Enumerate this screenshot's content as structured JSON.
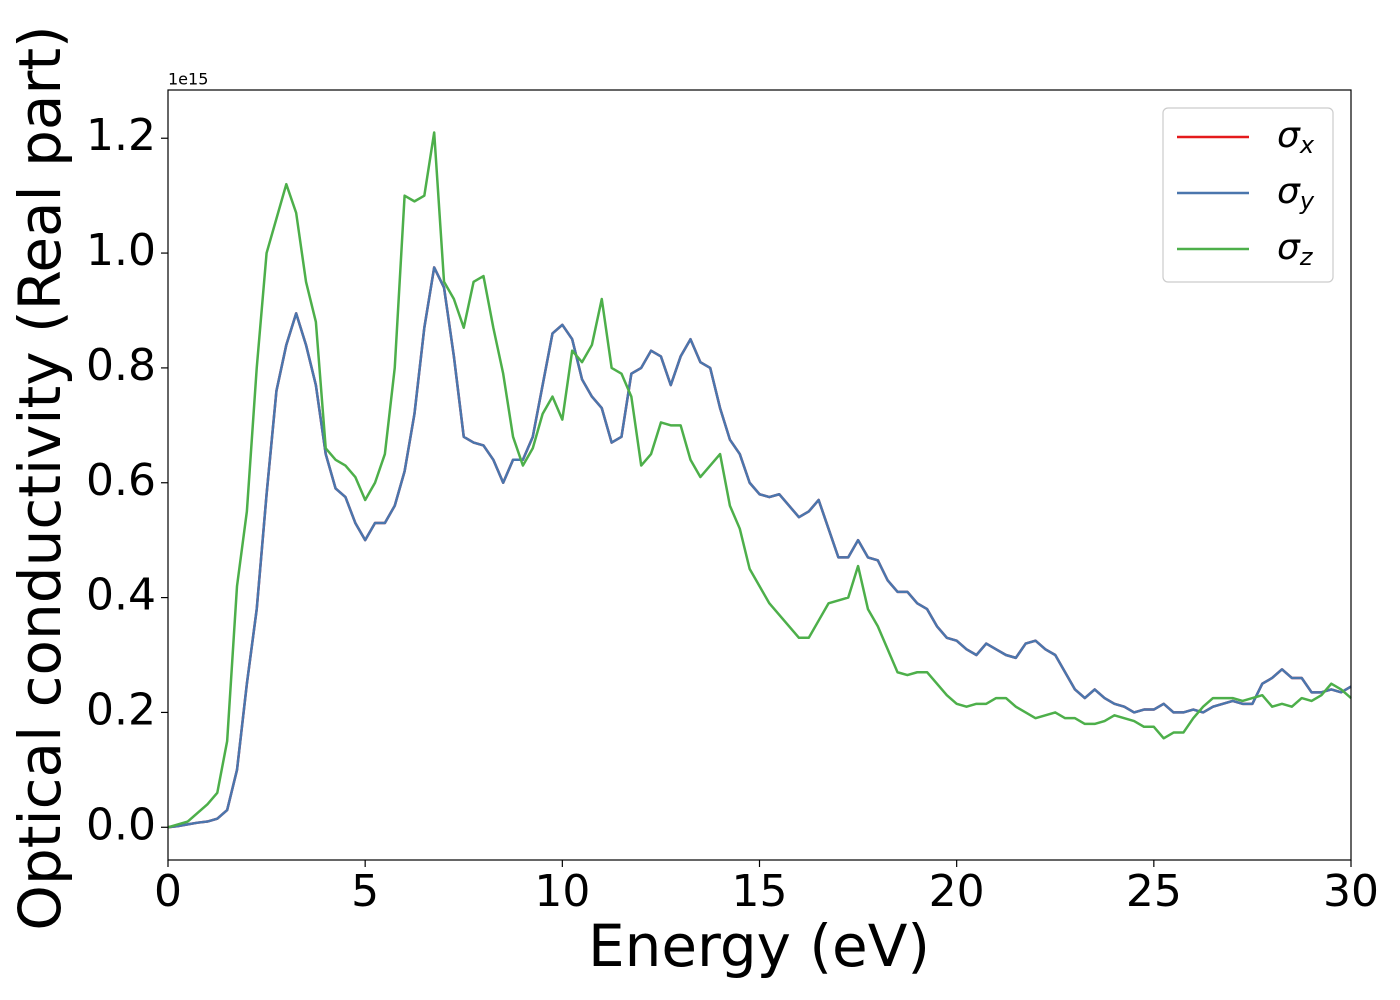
{
  "chart_data": {
    "type": "line",
    "xlabel": "Energy (eV)",
    "ylabel": "Optical conductivity (Real part)",
    "y_offset_text": "1e15",
    "xlim": [
      0,
      30
    ],
    "xticks": [
      0,
      5,
      10,
      15,
      20,
      25,
      30
    ],
    "ylim": [
      -0.057,
      1.284
    ],
    "yticks": [
      {
        "value": 0,
        "label": "0.0"
      },
      0.2,
      0.4,
      0.6,
      0.8,
      {
        "value": 1,
        "label": "1.0"
      },
      1.2
    ],
    "legend": "upper right",
    "x": [
      0,
      0.25,
      0.5,
      0.75,
      1,
      1.25,
      1.5,
      1.75,
      2,
      2.25,
      2.5,
      2.75,
      3,
      3.25,
      3.5,
      3.75,
      4,
      4.25,
      4.5,
      4.75,
      5,
      5.25,
      5.5,
      5.75,
      6,
      6.25,
      6.5,
      6.75,
      7,
      7.25,
      7.5,
      7.75,
      8,
      8.25,
      8.5,
      8.75,
      9,
      9.25,
      9.5,
      9.75,
      10,
      10.25,
      10.5,
      10.75,
      11,
      11.25,
      11.5,
      11.75,
      12,
      12.25,
      12.5,
      12.75,
      13,
      13.25,
      13.5,
      13.75,
      14,
      14.25,
      14.5,
      14.75,
      15,
      15.25,
      15.5,
      15.75,
      16,
      16.25,
      16.5,
      16.75,
      17,
      17.25,
      17.5,
      17.75,
      18,
      18.25,
      18.5,
      18.75,
      19,
      19.25,
      19.5,
      19.75,
      20,
      20.25,
      20.5,
      20.75,
      21,
      21.25,
      21.5,
      21.75,
      22,
      22.25,
      22.5,
      22.75,
      23,
      23.25,
      23.5,
      23.75,
      24,
      24.25,
      24.5,
      24.75,
      25,
      25.25,
      25.5,
      25.75,
      26,
      26.25,
      26.5,
      26.75,
      27,
      27.25,
      27.5,
      27.75,
      28,
      28.25,
      28.5,
      28.75,
      29,
      29.25,
      29.5,
      29.75,
      30
    ],
    "series": [
      {
        "name": "σx",
        "color": "#e41a1c",
        "values": [
          0,
          0.002,
          0.005,
          0.008,
          0.01,
          0.015,
          0.03,
          0.1,
          0.25,
          0.38,
          0.58,
          0.76,
          0.84,
          0.895,
          0.84,
          0.77,
          0.65,
          0.59,
          0.575,
          0.53,
          0.5,
          0.53,
          0.53,
          0.56,
          0.62,
          0.72,
          0.87,
          0.975,
          0.94,
          0.82,
          0.68,
          0.67,
          0.665,
          0.64,
          0.6,
          0.64,
          0.64,
          0.68,
          0.77,
          0.86,
          0.875,
          0.85,
          0.78,
          0.75,
          0.73,
          0.67,
          0.68,
          0.79,
          0.8,
          0.83,
          0.82,
          0.77,
          0.82,
          0.85,
          0.81,
          0.8,
          0.73,
          0.675,
          0.65,
          0.6,
          0.58,
          0.575,
          0.58,
          0.56,
          0.54,
          0.55,
          0.57,
          0.52,
          0.47,
          0.47,
          0.5,
          0.47,
          0.465,
          0.43,
          0.41,
          0.41,
          0.39,
          0.38,
          0.35,
          0.33,
          0.325,
          0.31,
          0.3,
          0.32,
          0.31,
          0.3,
          0.295,
          0.32,
          0.325,
          0.31,
          0.3,
          0.27,
          0.24,
          0.225,
          0.24,
          0.225,
          0.215,
          0.21,
          0.2,
          0.205,
          0.205,
          0.215,
          0.2,
          0.2,
          0.205,
          0.2,
          0.21,
          0.215,
          0.22,
          0.215,
          0.215,
          0.25,
          0.26,
          0.275,
          0.26,
          0.26,
          0.235,
          0.235,
          0.24,
          0.235,
          0.245
        ]
      },
      {
        "name": "σy",
        "color": "#4a76ad",
        "values": [
          0,
          0.002,
          0.005,
          0.008,
          0.01,
          0.015,
          0.03,
          0.1,
          0.25,
          0.38,
          0.58,
          0.76,
          0.84,
          0.895,
          0.84,
          0.77,
          0.65,
          0.59,
          0.575,
          0.53,
          0.5,
          0.53,
          0.53,
          0.56,
          0.62,
          0.72,
          0.87,
          0.975,
          0.94,
          0.82,
          0.68,
          0.67,
          0.665,
          0.64,
          0.6,
          0.64,
          0.64,
          0.68,
          0.77,
          0.86,
          0.875,
          0.85,
          0.78,
          0.75,
          0.73,
          0.67,
          0.68,
          0.79,
          0.8,
          0.83,
          0.82,
          0.77,
          0.82,
          0.85,
          0.81,
          0.8,
          0.73,
          0.675,
          0.65,
          0.6,
          0.58,
          0.575,
          0.58,
          0.56,
          0.54,
          0.55,
          0.57,
          0.52,
          0.47,
          0.47,
          0.5,
          0.47,
          0.465,
          0.43,
          0.41,
          0.41,
          0.39,
          0.38,
          0.35,
          0.33,
          0.325,
          0.31,
          0.3,
          0.32,
          0.31,
          0.3,
          0.295,
          0.32,
          0.325,
          0.31,
          0.3,
          0.27,
          0.24,
          0.225,
          0.24,
          0.225,
          0.215,
          0.21,
          0.2,
          0.205,
          0.205,
          0.215,
          0.2,
          0.2,
          0.205,
          0.2,
          0.21,
          0.215,
          0.22,
          0.215,
          0.215,
          0.25,
          0.26,
          0.275,
          0.26,
          0.26,
          0.235,
          0.235,
          0.24,
          0.235,
          0.245
        ]
      },
      {
        "name": "σz",
        "color": "#4daf4a",
        "values": [
          0,
          0.005,
          0.01,
          0.025,
          0.04,
          0.06,
          0.15,
          0.42,
          0.55,
          0.8,
          1.0,
          1.06,
          1.12,
          1.07,
          0.95,
          0.88,
          0.66,
          0.64,
          0.63,
          0.61,
          0.57,
          0.6,
          0.65,
          0.8,
          1.1,
          1.09,
          1.1,
          1.21,
          0.95,
          0.92,
          0.87,
          0.95,
          0.96,
          0.87,
          0.79,
          0.68,
          0.63,
          0.66,
          0.72,
          0.75,
          0.71,
          0.83,
          0.81,
          0.84,
          0.92,
          0.8,
          0.79,
          0.75,
          0.63,
          0.65,
          0.705,
          0.7,
          0.7,
          0.64,
          0.61,
          0.63,
          0.65,
          0.56,
          0.52,
          0.45,
          0.42,
          0.39,
          0.37,
          0.35,
          0.33,
          0.33,
          0.36,
          0.39,
          0.395,
          0.4,
          0.455,
          0.38,
          0.35,
          0.31,
          0.27,
          0.265,
          0.27,
          0.27,
          0.25,
          0.23,
          0.215,
          0.21,
          0.215,
          0.215,
          0.225,
          0.225,
          0.21,
          0.2,
          0.19,
          0.195,
          0.2,
          0.19,
          0.19,
          0.18,
          0.18,
          0.185,
          0.195,
          0.19,
          0.185,
          0.175,
          0.175,
          0.155,
          0.165,
          0.165,
          0.19,
          0.21,
          0.225,
          0.225,
          0.225,
          0.22,
          0.225,
          0.23,
          0.21,
          0.215,
          0.21,
          0.225,
          0.22,
          0.23,
          0.25,
          0.24,
          0.225
        ]
      }
    ]
  }
}
